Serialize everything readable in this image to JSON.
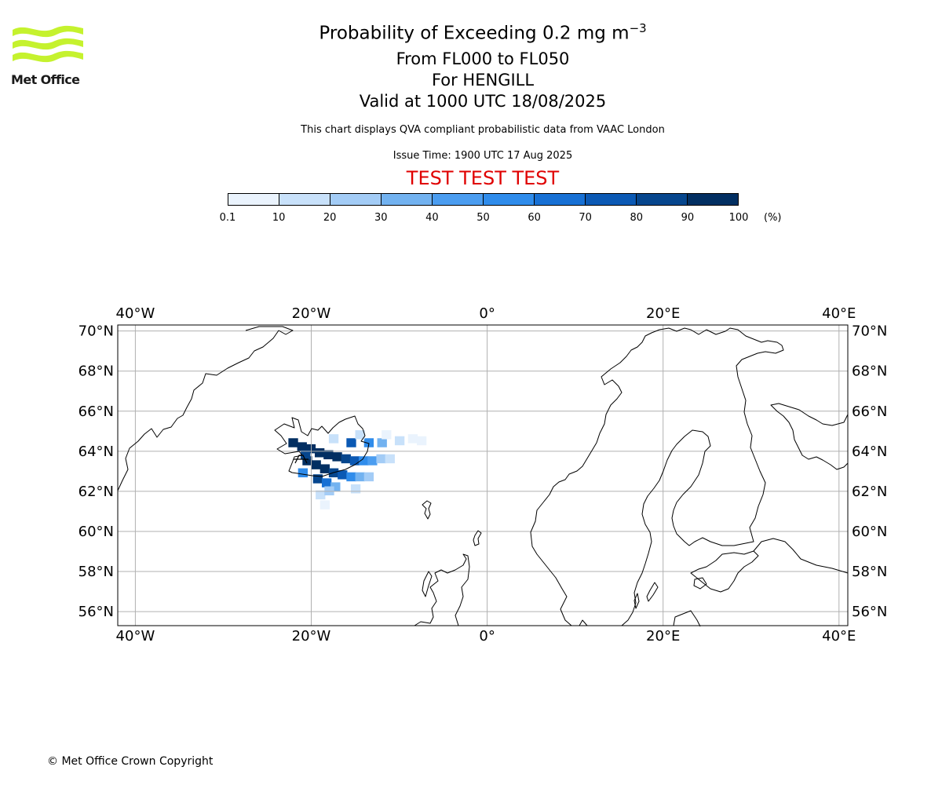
{
  "header": {
    "logo_text": "Met Office",
    "title_main": "Probability of Exceeding 0.2 mg m",
    "title_superscript": "−3",
    "flight_levels": "From FL000 to FL050",
    "volcano": "For HENGILL",
    "valid_time": "Valid at 1000 UTC 18/08/2025",
    "disclaimer": "This chart displays QVA compliant probabilistic data from VAAC London",
    "issue_time": "Issue Time: 1900 UTC 17 Aug 2025",
    "test_banner": "TEST TEST TEST"
  },
  "colorbar": {
    "ticks": [
      "0.1",
      "10",
      "20",
      "30",
      "40",
      "50",
      "60",
      "70",
      "80",
      "90",
      "100"
    ],
    "unit": "(%)",
    "colors": [
      "#eaf3fd",
      "#c8e1fa",
      "#a3ccf6",
      "#72b2f0",
      "#4b9df0",
      "#2f8ceb",
      "#1770d4",
      "#0b59b4",
      "#06468d",
      "#022f62"
    ]
  },
  "map": {
    "lon_labels": [
      "40°W",
      "20°W",
      "0°",
      "20°E",
      "40°E"
    ],
    "lat_labels": [
      "70°N",
      "68°N",
      "66°N",
      "64°N",
      "62°N",
      "60°N",
      "58°N",
      "56°N"
    ],
    "lon_values": [
      -40,
      -20,
      0,
      20,
      40
    ],
    "lat_values": [
      70,
      68,
      66,
      64,
      62,
      60,
      58,
      56
    ],
    "extent": {
      "lon": [
        -42,
        41
      ],
      "lat": [
        55.3,
        70.3
      ]
    },
    "probability_cells_percent": [
      [
        -22.6,
        64.2,
        92
      ],
      [
        -21.6,
        64.0,
        95
      ],
      [
        -20.6,
        63.9,
        97
      ],
      [
        -19.6,
        63.7,
        97
      ],
      [
        -18.6,
        63.6,
        96
      ],
      [
        -17.6,
        63.5,
        92
      ],
      [
        -16.6,
        63.4,
        85
      ],
      [
        -15.6,
        63.3,
        72
      ],
      [
        -14.6,
        63.3,
        55
      ],
      [
        -13.6,
        63.3,
        40
      ],
      [
        -12.6,
        63.4,
        25
      ],
      [
        -11.6,
        63.4,
        12
      ],
      [
        -21.0,
        63.3,
        90
      ],
      [
        -20.0,
        63.1,
        95
      ],
      [
        -19.0,
        62.9,
        93
      ],
      [
        -18.0,
        62.7,
        88
      ],
      [
        -17.0,
        62.6,
        78
      ],
      [
        -16.0,
        62.5,
        55
      ],
      [
        -15.0,
        62.5,
        35
      ],
      [
        -14.0,
        62.5,
        20
      ],
      [
        -19.8,
        62.4,
        80
      ],
      [
        -18.8,
        62.2,
        60
      ],
      [
        -17.8,
        62.0,
        38
      ],
      [
        -19.5,
        61.6,
        12
      ],
      [
        -18.5,
        61.8,
        20
      ],
      [
        -21.5,
        62.7,
        55
      ],
      [
        -21.2,
        63.6,
        88
      ],
      [
        -16.0,
        64.2,
        70
      ],
      [
        -14.0,
        64.2,
        58
      ],
      [
        -12.5,
        64.2,
        35
      ],
      [
        -10.5,
        64.3,
        15
      ],
      [
        -9.0,
        64.4,
        6
      ],
      [
        -18.0,
        64.4,
        18
      ],
      [
        -15.0,
        64.6,
        12
      ],
      [
        -12.0,
        64.6,
        8
      ],
      [
        -8.0,
        64.3,
        4
      ],
      [
        -19.0,
        61.1,
        6
      ],
      [
        -15.5,
        61.9,
        10
      ]
    ]
  },
  "footer": {
    "copyright": "© Met Office Crown Copyright"
  }
}
